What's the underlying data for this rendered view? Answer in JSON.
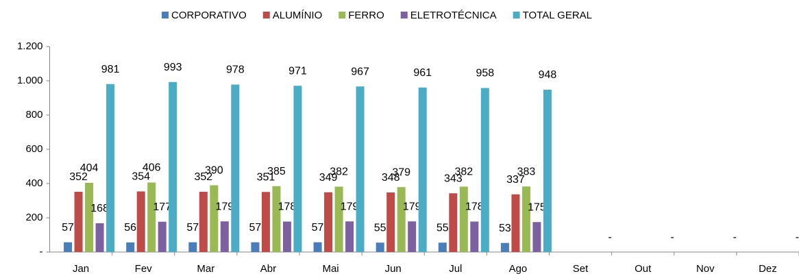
{
  "chart_data": {
    "type": "bar",
    "legend": "top",
    "categories": [
      "Jan",
      "Fev",
      "Mar",
      "Abr",
      "Mai",
      "Jun",
      "Jul",
      "Ago",
      "Set",
      "Out",
      "Nov",
      "Dez"
    ],
    "series": [
      {
        "name": "CORPORATIVO",
        "color": "#4a7ebb",
        "values": [
          57,
          56,
          57,
          57,
          57,
          55,
          55,
          53,
          null,
          null,
          null,
          null
        ]
      },
      {
        "name": "ALUMÍNIO",
        "color": "#be4b48",
        "values": [
          352,
          354,
          352,
          351,
          349,
          348,
          343,
          337,
          null,
          null,
          null,
          null
        ]
      },
      {
        "name": "FERRO",
        "color": "#98b954",
        "values": [
          404,
          406,
          390,
          385,
          382,
          379,
          382,
          383,
          null,
          null,
          null,
          null
        ]
      },
      {
        "name": "ELETROTÉCNICA",
        "color": "#7d60a0",
        "values": [
          168,
          177,
          179,
          178,
          179,
          179,
          178,
          175,
          null,
          null,
          null,
          null
        ]
      },
      {
        "name": "TOTAL GERAL",
        "color": "#4bacc6",
        "values": [
          981,
          993,
          978,
          971,
          967,
          961,
          958,
          948,
          0,
          0,
          0,
          0
        ],
        "value_labels": [
          "981",
          "993",
          "978",
          "971",
          "967",
          "961",
          "958",
          "948",
          "-",
          "-",
          "-",
          "-"
        ]
      }
    ],
    "ylim": [
      0,
      1200
    ],
    "yticks": [
      {
        "value": 0,
        "label": "-"
      },
      200,
      400,
      600,
      800,
      {
        "value": 1000,
        "label": "1.000"
      },
      {
        "value": 1200,
        "label": "1.200"
      }
    ],
    "grid": false
  }
}
